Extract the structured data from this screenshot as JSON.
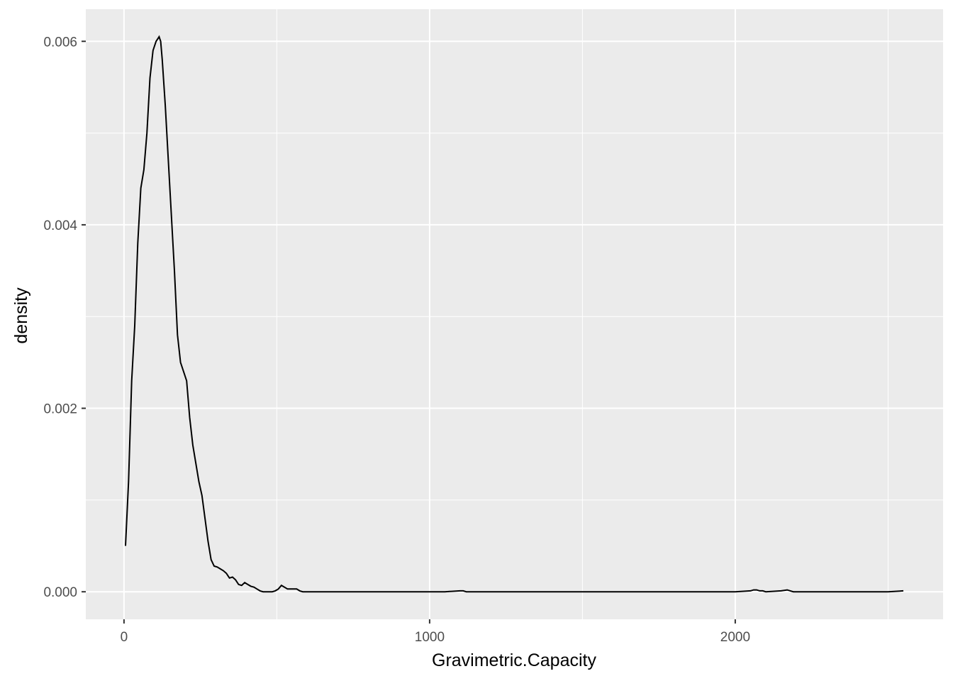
{
  "chart_data": {
    "type": "line",
    "title": "",
    "xlabel": "Gravimetric.Capacity",
    "ylabel": "density",
    "xlim": [
      -125,
      2680
    ],
    "ylim": [
      -0.0003,
      0.00635
    ],
    "x_ticks": [
      0,
      1000,
      2000
    ],
    "x_tick_labels": [
      "0",
      "1000",
      "2000"
    ],
    "y_ticks": [
      0,
      0.002,
      0.004,
      0.006
    ],
    "y_tick_labels": [
      "0.000",
      "0.002",
      "0.004",
      "0.006"
    ],
    "x_minor": [
      500,
      1500,
      2500
    ],
    "y_minor": [
      0.001,
      0.003,
      0.005
    ],
    "grid": true,
    "legend": "none",
    "colors": {
      "panel": "#EBEBEB",
      "grid": "#FFFFFF",
      "line": "#000000",
      "tick_text": "#4D4D4D"
    },
    "series": [
      {
        "x": [
          5,
          15,
          25,
          35,
          45,
          55,
          65,
          75,
          85,
          95,
          105,
          115,
          120,
          125,
          135,
          145,
          155,
          165,
          175,
          185,
          195,
          205,
          215,
          225,
          235,
          245,
          255,
          265,
          275,
          285,
          295,
          305,
          315,
          325,
          335,
          345,
          355,
          365,
          375,
          385,
          395,
          405,
          415,
          425,
          435,
          445,
          455,
          465,
          475,
          485,
          495,
          505,
          515,
          525,
          535,
          545,
          555,
          565,
          575,
          585,
          595,
          605,
          615,
          625,
          635,
          645,
          655,
          665,
          675,
          685,
          695,
          705,
          715,
          725,
          735,
          750,
          800,
          900,
          1000,
          1050,
          1100,
          1110,
          1120,
          1150,
          1200,
          1300,
          1400,
          1500,
          1600,
          1700,
          1800,
          1900,
          2000,
          2050,
          2060,
          2070,
          2080,
          2090,
          2100,
          2150,
          2170,
          2180,
          2190,
          2200,
          2300,
          2400,
          2500,
          2550
        ],
        "y": [
          0.0005,
          0.0012,
          0.0023,
          0.0029,
          0.0038,
          0.0044,
          0.0046,
          0.005,
          0.0056,
          0.0059,
          0.006,
          0.00605,
          0.006,
          0.0058,
          0.0053,
          0.0047,
          0.0041,
          0.0035,
          0.0028,
          0.0025,
          0.0024,
          0.0023,
          0.0019,
          0.0016,
          0.0014,
          0.0012,
          0.00105,
          0.0008,
          0.00055,
          0.00035,
          0.00028,
          0.00027,
          0.00025,
          0.00023,
          0.0002,
          0.00015,
          0.00016,
          0.00013,
          8e-05,
          7e-05,
          0.0001,
          8e-05,
          6e-05,
          5e-05,
          3e-05,
          1e-05,
          0.0,
          0.0,
          0.0,
          0.0,
          1e-05,
          3e-05,
          7e-05,
          5e-05,
          3e-05,
          3e-05,
          3e-05,
          3e-05,
          1e-05,
          0.0,
          0.0,
          0.0,
          0.0,
          0.0,
          0.0,
          0.0,
          0.0,
          0.0,
          0.0,
          0.0,
          0.0,
          0.0,
          0.0,
          0.0,
          0.0,
          0.0,
          0.0,
          0.0,
          0.0,
          0.0,
          1e-05,
          1e-05,
          0.0,
          0.0,
          0.0,
          0.0,
          0.0,
          0.0,
          0.0,
          0.0,
          0.0,
          0.0,
          0.0,
          1e-05,
          2e-05,
          2e-05,
          1e-05,
          1e-05,
          0.0,
          1e-05,
          2e-05,
          1e-05,
          0.0,
          0.0,
          0.0,
          0.0,
          0.0,
          1e-05
        ]
      }
    ]
  }
}
